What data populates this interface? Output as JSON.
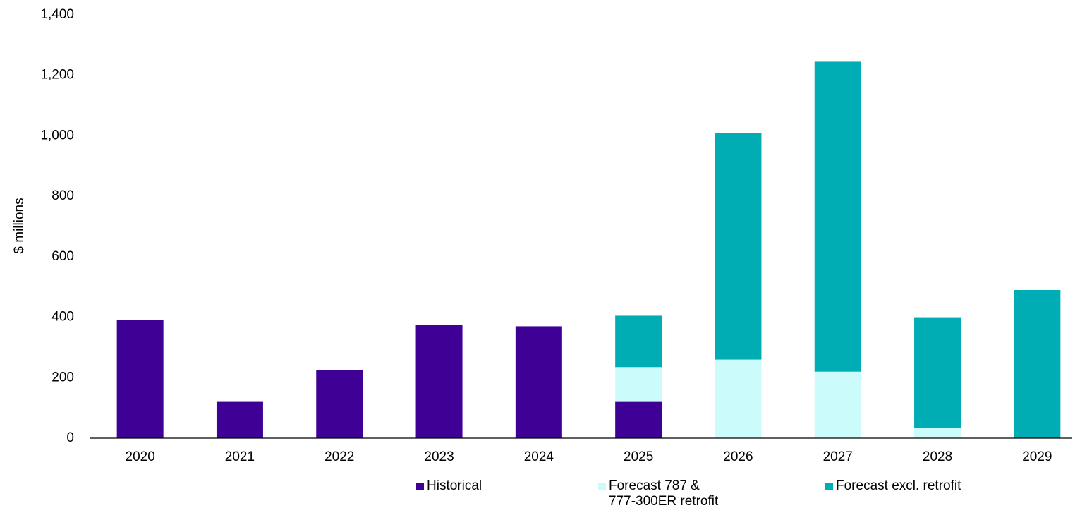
{
  "chart_data": {
    "type": "stacked_bar",
    "y_label": "$ millions",
    "categories": [
      "2020",
      "2021",
      "2022",
      "2023",
      "2024",
      "2025",
      "2026",
      "2027",
      "2028",
      "2029"
    ],
    "series": [
      {
        "name": "Historical",
        "color": "#3f0096",
        "values": [
          390,
          120,
          225,
          375,
          370,
          120,
          null,
          null,
          null,
          null
        ]
      },
      {
        "name": "Forecast 787 & 777-300ER retrofit",
        "color": "#ccfbfb",
        "values": [
          null,
          null,
          null,
          null,
          null,
          115,
          260,
          220,
          35,
          null
        ]
      },
      {
        "name": "Forecast excl. retrofit",
        "color": "#00adb5",
        "values": [
          null,
          null,
          null,
          null,
          null,
          170,
          750,
          1025,
          365,
          490
        ]
      }
    ],
    "ylim": [
      0,
      1400
    ],
    "yticks": [
      0,
      200,
      400,
      600,
      800,
      {
        "value": 1000,
        "label": "1,000"
      },
      {
        "value": 1200,
        "label": "1,200"
      },
      {
        "value": 1400,
        "label": "1,400"
      }
    ],
    "grid": false
  }
}
